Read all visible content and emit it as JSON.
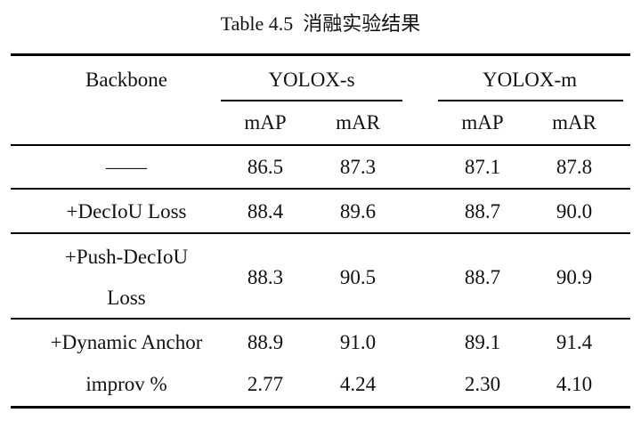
{
  "title": "Table 4.5  消融实验结果",
  "table": {
    "header": {
      "backbone": "Backbone",
      "groups": [
        "YOLOX-s",
        "YOLOX-m"
      ],
      "subheaders": [
        "mAP",
        "mAR",
        "mAP",
        "mAR"
      ]
    },
    "rows": [
      [
        "——",
        "86.5",
        "87.3",
        "87.1",
        "87.8"
      ],
      [
        "+DecIoU Loss",
        "88.4",
        "89.6",
        "88.7",
        "90.0"
      ],
      [
        "+Push-DecIoU Loss",
        "88.3",
        "90.5",
        "88.7",
        "90.9"
      ],
      [
        "+Dynamic Anchor",
        "88.9",
        "91.0",
        "89.1",
        "91.4"
      ],
      [
        "improv %",
        "2.77",
        "4.24",
        "2.30",
        "4.10"
      ]
    ]
  }
}
